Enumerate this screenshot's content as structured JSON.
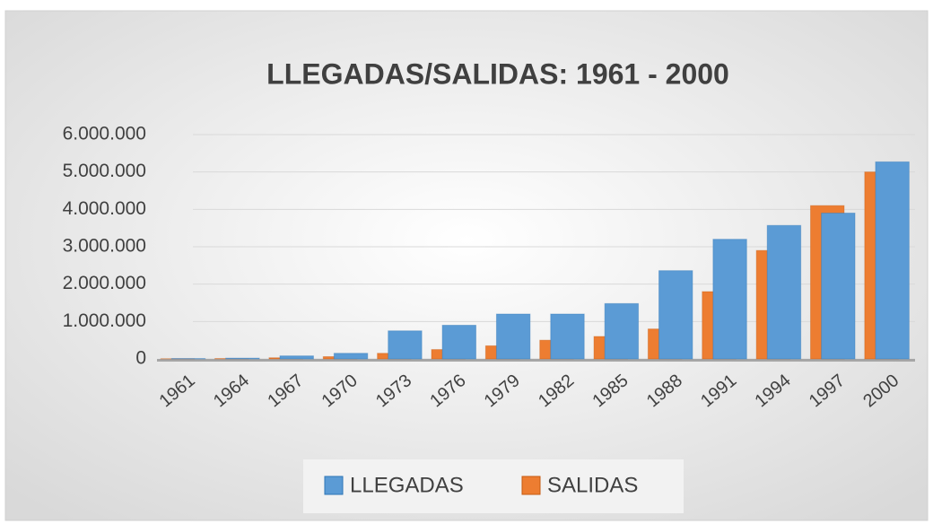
{
  "chart_data": {
    "type": "bar",
    "title": "LLEGADAS/SALIDAS:  1961 - 2000",
    "categories": [
      "1961",
      "1964",
      "1967",
      "1970",
      "1973",
      "1976",
      "1979",
      "1982",
      "1985",
      "1988",
      "1991",
      "1994",
      "1997",
      "2000"
    ],
    "series": [
      {
        "name": "LLEGADAS",
        "color": "#5b9bd5",
        "values": [
          10000,
          20000,
          80000,
          150000,
          750000,
          900000,
          1200000,
          1200000,
          1480000,
          2360000,
          3200000,
          3570000,
          3900000,
          5270000
        ]
      },
      {
        "name": "SALIDAS",
        "color": "#ed7d31",
        "values": [
          5000,
          10000,
          30000,
          60000,
          150000,
          250000,
          350000,
          500000,
          600000,
          800000,
          1800000,
          2900000,
          4100000,
          5000000
        ]
      }
    ],
    "ylim": [
      0,
      6000000
    ],
    "yticks": [
      0,
      {
        "value": 1000000,
        "label": "1.000.000"
      },
      {
        "value": 2000000,
        "label": "2.000.000"
      },
      {
        "value": 3000000,
        "label": "3.000.000"
      },
      {
        "value": 4000000,
        "label": "4.000.000"
      },
      {
        "value": 5000000,
        "label": "5.000.000"
      },
      {
        "value": 6000000,
        "label": "6.000.000"
      }
    ],
    "grid": true,
    "legend": "bottom"
  }
}
